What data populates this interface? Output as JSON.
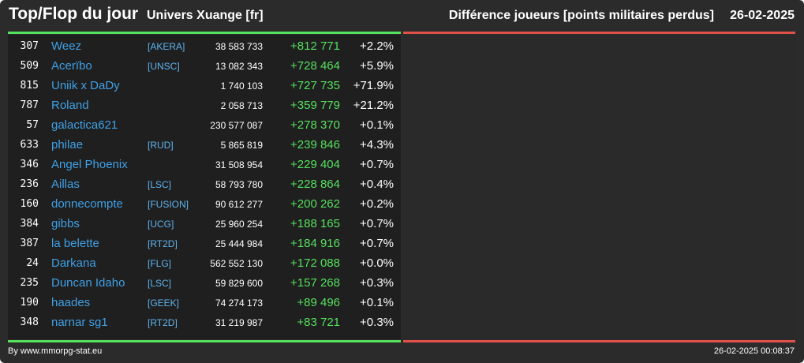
{
  "header": {
    "title": "Top/Flop du jour",
    "universe": "Univers Xuange [fr]",
    "metric": "Différence joueurs [points militaires perdus]",
    "date": "26-02-2025"
  },
  "colors": {
    "accent_green": "#55e05e",
    "accent_red": "#e0514a",
    "link_blue": "#3fa0e6"
  },
  "rows": [
    {
      "rank": "307",
      "name": "Weez",
      "alliance": "[AKERA]",
      "points": "38 583 733",
      "diff": "+812 771",
      "pct": "+2.2%"
    },
    {
      "rank": "509",
      "name": "Acerïbo",
      "alliance": "[UNSC]",
      "points": "13 082 343",
      "diff": "+728 464",
      "pct": "+5.9%"
    },
    {
      "rank": "815",
      "name": "Uniik x DaDy",
      "alliance": "",
      "points": "1 740 103",
      "diff": "+727 735",
      "pct": "+71.9%"
    },
    {
      "rank": "787",
      "name": "Roland",
      "alliance": "",
      "points": "2 058 713",
      "diff": "+359 779",
      "pct": "+21.2%"
    },
    {
      "rank": "57",
      "name": "galactica621",
      "alliance": "",
      "points": "230 577 087",
      "diff": "+278 370",
      "pct": "+0.1%"
    },
    {
      "rank": "633",
      "name": "philae",
      "alliance": "[RUD]",
      "points": "5 865 819",
      "diff": "+239 846",
      "pct": "+4.3%"
    },
    {
      "rank": "346",
      "name": "Angel Phoenix",
      "alliance": "",
      "points": "31 508 954",
      "diff": "+229 404",
      "pct": "+0.7%"
    },
    {
      "rank": "236",
      "name": "Aillas",
      "alliance": "[LSC]",
      "points": "58 793 780",
      "diff": "+228 864",
      "pct": "+0.4%"
    },
    {
      "rank": "160",
      "name": "donnecompte",
      "alliance": "[FUSION]",
      "points": "90 612 277",
      "diff": "+200 262",
      "pct": "+0.2%"
    },
    {
      "rank": "384",
      "name": "gibbs",
      "alliance": "[UCG]",
      "points": "25 960 254",
      "diff": "+188 165",
      "pct": "+0.7%"
    },
    {
      "rank": "387",
      "name": "la belette",
      "alliance": "[RT2D]",
      "points": "25 444 984",
      "diff": "+184 916",
      "pct": "+0.7%"
    },
    {
      "rank": "24",
      "name": "Darkana",
      "alliance": "[FLG]",
      "points": "562 552 130",
      "diff": "+172 088",
      "pct": "+0.0%"
    },
    {
      "rank": "235",
      "name": "Duncan Idaho",
      "alliance": "[LSC]",
      "points": "59 829 600",
      "diff": "+157 268",
      "pct": "+0.3%"
    },
    {
      "rank": "190",
      "name": "haades",
      "alliance": "[GEEK]",
      "points": "74 274 173",
      "diff": "+89 496",
      "pct": "+0.1%"
    },
    {
      "rank": "348",
      "name": "narnar sg1",
      "alliance": "[RT2D]",
      "points": "31 219 987",
      "diff": "+83 721",
      "pct": "+0.3%"
    }
  ],
  "footer": {
    "credit": "By www.mmorpg-stat.eu",
    "timestamp": "26-02-2025 00:08:37"
  }
}
